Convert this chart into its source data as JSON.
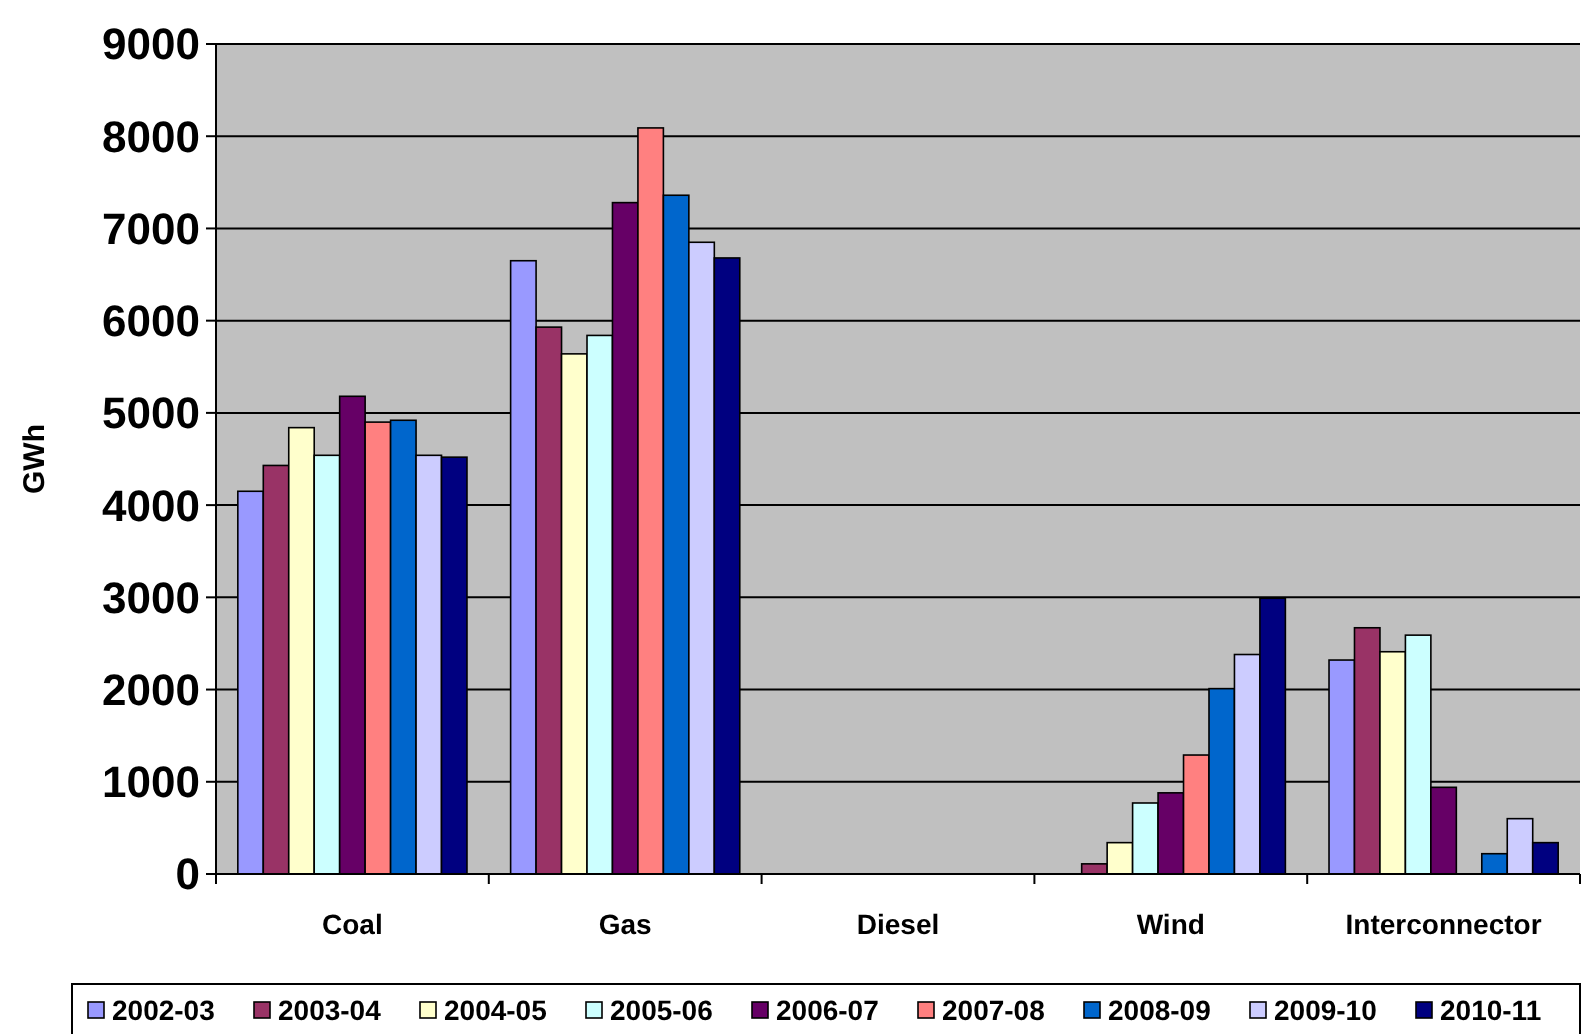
{
  "chart_data": {
    "type": "bar",
    "ylabel": "GWh",
    "categories": [
      "Coal",
      "Gas",
      "Diesel",
      "Wind",
      "Interconnector"
    ],
    "series": [
      {
        "name": "2002-03",
        "color": "#9999ff",
        "values": [
          4150,
          6650,
          0,
          0,
          2320
        ]
      },
      {
        "name": "2003-04",
        "color": "#993366",
        "values": [
          4430,
          5930,
          0,
          110,
          2670
        ]
      },
      {
        "name": "2004-05",
        "color": "#ffffcc",
        "values": [
          4840,
          5640,
          0,
          340,
          2410
        ]
      },
      {
        "name": "2005-06",
        "color": "#ccffff",
        "values": [
          4540,
          5840,
          0,
          770,
          2590
        ]
      },
      {
        "name": "2006-07",
        "color": "#660066",
        "values": [
          5180,
          7280,
          0,
          880,
          940
        ]
      },
      {
        "name": "2007-08",
        "color": "#ff8080",
        "values": [
          4900,
          8090,
          0,
          1290,
          0
        ]
      },
      {
        "name": "2008-09",
        "color": "#0066cc",
        "values": [
          4920,
          7360,
          0,
          2010,
          220
        ]
      },
      {
        "name": "2009-10",
        "color": "#ccccff",
        "values": [
          4540,
          6850,
          0,
          2380,
          600
        ]
      },
      {
        "name": "2010-11",
        "color": "#000080",
        "values": [
          4520,
          6680,
          0,
          2990,
          340
        ]
      }
    ],
    "ylim": [
      0,
      9000
    ],
    "yticks": [
      0,
      1000,
      2000,
      3000,
      4000,
      5000,
      6000,
      7000,
      8000,
      9000
    ],
    "grid": "y",
    "legend": "bottom"
  }
}
